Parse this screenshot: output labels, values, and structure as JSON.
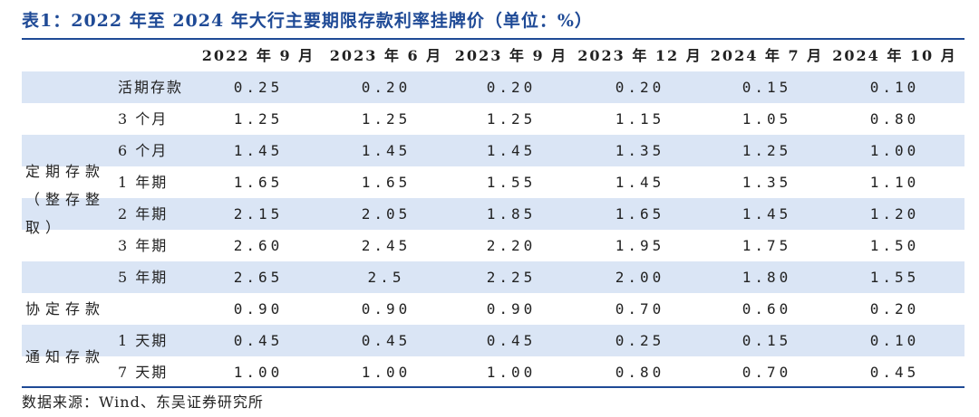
{
  "title": "表1：2022 年至 2024 年大行主要期限存款利率挂牌价（单位：%）",
  "source": "数据来源：Wind、东吴证券研究所",
  "colors": {
    "title": "#1f4a96",
    "stripe": "#dae5f5",
    "rule": "#1f4a96"
  },
  "chart_data": {
    "type": "table",
    "columns": [
      "2022 年 9 月",
      "2023 年 6 月",
      "2023 年 9 月",
      "2023 年 12 月",
      "2024 年 7 月",
      "2024 年 10 月"
    ],
    "groups": {
      "fixed_deposit": {
        "line1": "定期存款",
        "line2": "（整存整",
        "line3": "取）"
      },
      "agreement_deposit": "协定存款",
      "call_deposit": "通知存款"
    },
    "rows": [
      {
        "label": "活期存款",
        "values": [
          "0.25",
          "0.20",
          "0.20",
          "0.20",
          "0.15",
          "0.10"
        ]
      },
      {
        "label": "3 个月",
        "values": [
          "1.25",
          "1.25",
          "1.25",
          "1.15",
          "1.05",
          "0.80"
        ]
      },
      {
        "label": "6 个月",
        "values": [
          "1.45",
          "1.45",
          "1.45",
          "1.35",
          "1.25",
          "1.00"
        ]
      },
      {
        "label": "1 年期",
        "values": [
          "1.65",
          "1.65",
          "1.55",
          "1.45",
          "1.35",
          "1.10"
        ]
      },
      {
        "label": "2 年期",
        "values": [
          "2.15",
          "2.05",
          "1.85",
          "1.65",
          "1.45",
          "1.20"
        ]
      },
      {
        "label": "3 年期",
        "values": [
          "2.60",
          "2.45",
          "2.20",
          "1.95",
          "1.75",
          "1.50"
        ]
      },
      {
        "label": "5 年期",
        "values": [
          "2.65",
          "2.5",
          "2.25",
          "2.00",
          "1.80",
          "1.55"
        ]
      },
      {
        "label": "",
        "values": [
          "0.90",
          "0.90",
          "0.90",
          "0.70",
          "0.60",
          "0.20"
        ]
      },
      {
        "label": "1 天期",
        "values": [
          "0.45",
          "0.45",
          "0.45",
          "0.25",
          "0.15",
          "0.10"
        ]
      },
      {
        "label": "7 天期",
        "values": [
          "1.00",
          "1.00",
          "1.00",
          "0.80",
          "0.70",
          "0.45"
        ]
      }
    ]
  }
}
